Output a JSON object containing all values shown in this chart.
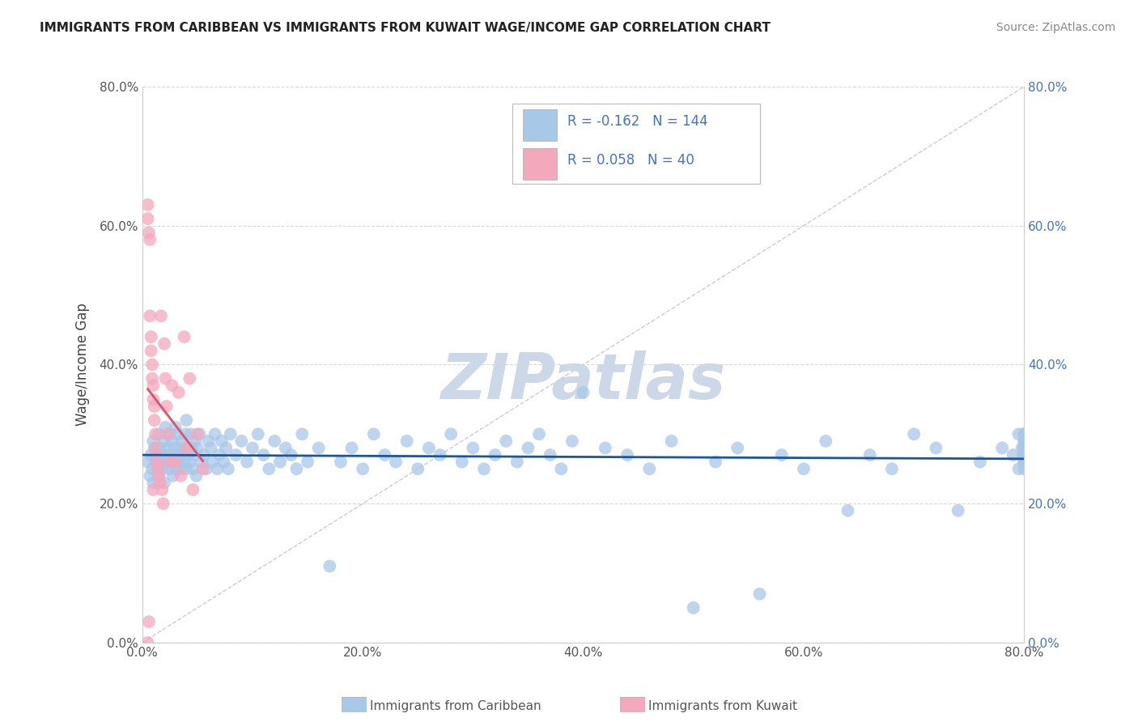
{
  "title": "IMMIGRANTS FROM CARIBBEAN VS IMMIGRANTS FROM KUWAIT WAGE/INCOME GAP CORRELATION CHART",
  "source": "Source: ZipAtlas.com",
  "ylabel": "Wage/Income Gap",
  "xlim": [
    0.0,
    0.8
  ],
  "ylim": [
    0.0,
    0.8
  ],
  "xticks": [
    0.0,
    0.2,
    0.4,
    0.6,
    0.8
  ],
  "yticks": [
    0.0,
    0.2,
    0.4,
    0.6,
    0.8
  ],
  "xticklabels": [
    "0.0%",
    "20.0%",
    "40.0%",
    "60.0%",
    "80.0%"
  ],
  "yticklabels": [
    "0.0%",
    "20.0%",
    "40.0%",
    "60.0%",
    "80.0%"
  ],
  "legend_label1": "Immigrants from Caribbean",
  "legend_label2": "Immigrants from Kuwait",
  "R1": -0.162,
  "N1": 144,
  "R2": 0.058,
  "N2": 40,
  "color_caribbean": "#a8c8e8",
  "color_kuwait": "#f4a8bc",
  "trendline_color_caribbean": "#1a56a0",
  "trendline_color_kuwait": "#e05070",
  "diagonal_color": "#cccccc",
  "watermark": "ZIPatlas",
  "watermark_color": "#ccd8e8",
  "caribbean_x": [
    0.005,
    0.007,
    0.008,
    0.009,
    0.01,
    0.01,
    0.011,
    0.012,
    0.013,
    0.014,
    0.015,
    0.015,
    0.016,
    0.017,
    0.018,
    0.019,
    0.02,
    0.02,
    0.021,
    0.022,
    0.023,
    0.024,
    0.025,
    0.025,
    0.026,
    0.027,
    0.028,
    0.029,
    0.03,
    0.03,
    0.031,
    0.032,
    0.033,
    0.034,
    0.035,
    0.036,
    0.037,
    0.038,
    0.039,
    0.04,
    0.04,
    0.041,
    0.042,
    0.043,
    0.044,
    0.045,
    0.046,
    0.047,
    0.048,
    0.049,
    0.05,
    0.052,
    0.054,
    0.056,
    0.058,
    0.06,
    0.062,
    0.064,
    0.066,
    0.068,
    0.07,
    0.072,
    0.074,
    0.076,
    0.078,
    0.08,
    0.085,
    0.09,
    0.095,
    0.1,
    0.105,
    0.11,
    0.115,
    0.12,
    0.125,
    0.13,
    0.135,
    0.14,
    0.145,
    0.15,
    0.16,
    0.17,
    0.18,
    0.19,
    0.2,
    0.21,
    0.22,
    0.23,
    0.24,
    0.25,
    0.26,
    0.27,
    0.28,
    0.29,
    0.3,
    0.31,
    0.32,
    0.33,
    0.34,
    0.35,
    0.36,
    0.37,
    0.38,
    0.39,
    0.4,
    0.42,
    0.44,
    0.46,
    0.48,
    0.5,
    0.52,
    0.54,
    0.56,
    0.58,
    0.6,
    0.62,
    0.64,
    0.66,
    0.68,
    0.7,
    0.72,
    0.74,
    0.76,
    0.78,
    0.79,
    0.795,
    0.795,
    0.798,
    0.799,
    0.8,
    0.8,
    0.8,
    0.8,
    0.8,
    0.8,
    0.8,
    0.8,
    0.8,
    0.8,
    0.8,
    0.8,
    0.8,
    0.8,
    0.8
  ],
  "caribbean_y": [
    0.26,
    0.24,
    0.27,
    0.25,
    0.29,
    0.23,
    0.28,
    0.26,
    0.27,
    0.25,
    0.3,
    0.24,
    0.28,
    0.26,
    0.25,
    0.27,
    0.29,
    0.23,
    0.31,
    0.26,
    0.28,
    0.25,
    0.3,
    0.27,
    0.26,
    0.29,
    0.24,
    0.28,
    0.31,
    0.25,
    0.27,
    0.3,
    0.26,
    0.28,
    0.25,
    0.29,
    0.27,
    0.26,
    0.3,
    0.32,
    0.25,
    0.28,
    0.27,
    0.26,
    0.3,
    0.28,
    0.25,
    0.27,
    0.29,
    0.24,
    0.28,
    0.3,
    0.26,
    0.27,
    0.25,
    0.29,
    0.28,
    0.26,
    0.3,
    0.25,
    0.27,
    0.29,
    0.26,
    0.28,
    0.25,
    0.3,
    0.27,
    0.29,
    0.26,
    0.28,
    0.3,
    0.27,
    0.25,
    0.29,
    0.26,
    0.28,
    0.27,
    0.25,
    0.3,
    0.26,
    0.28,
    0.11,
    0.26,
    0.28,
    0.25,
    0.3,
    0.27,
    0.26,
    0.29,
    0.25,
    0.28,
    0.27,
    0.3,
    0.26,
    0.28,
    0.25,
    0.27,
    0.29,
    0.26,
    0.28,
    0.3,
    0.27,
    0.25,
    0.29,
    0.36,
    0.28,
    0.27,
    0.25,
    0.29,
    0.05,
    0.26,
    0.28,
    0.07,
    0.27,
    0.25,
    0.29,
    0.19,
    0.27,
    0.25,
    0.3,
    0.28,
    0.19,
    0.26,
    0.28,
    0.27,
    0.3,
    0.25,
    0.28,
    0.27,
    0.26,
    0.29,
    0.28,
    0.3,
    0.27,
    0.28,
    0.25,
    0.3,
    0.28,
    0.26,
    0.3,
    0.27,
    0.29,
    0.28,
    0.26
  ],
  "kuwait_x": [
    0.005,
    0.005,
    0.005,
    0.006,
    0.006,
    0.007,
    0.007,
    0.008,
    0.008,
    0.009,
    0.009,
    0.01,
    0.01,
    0.01,
    0.011,
    0.011,
    0.012,
    0.012,
    0.013,
    0.014,
    0.015,
    0.016,
    0.017,
    0.018,
    0.019,
    0.02,
    0.021,
    0.022,
    0.023,
    0.025,
    0.027,
    0.03,
    0.033,
    0.035,
    0.038,
    0.04,
    0.043,
    0.046,
    0.05,
    0.055
  ],
  "kuwait_y": [
    0.63,
    0.61,
    0.0,
    0.59,
    0.03,
    0.58,
    0.47,
    0.44,
    0.42,
    0.4,
    0.38,
    0.37,
    0.35,
    0.22,
    0.34,
    0.32,
    0.3,
    0.28,
    0.26,
    0.25,
    0.24,
    0.23,
    0.47,
    0.22,
    0.2,
    0.43,
    0.38,
    0.34,
    0.3,
    0.26,
    0.37,
    0.26,
    0.36,
    0.24,
    0.44,
    0.28,
    0.38,
    0.22,
    0.3,
    0.25
  ]
}
